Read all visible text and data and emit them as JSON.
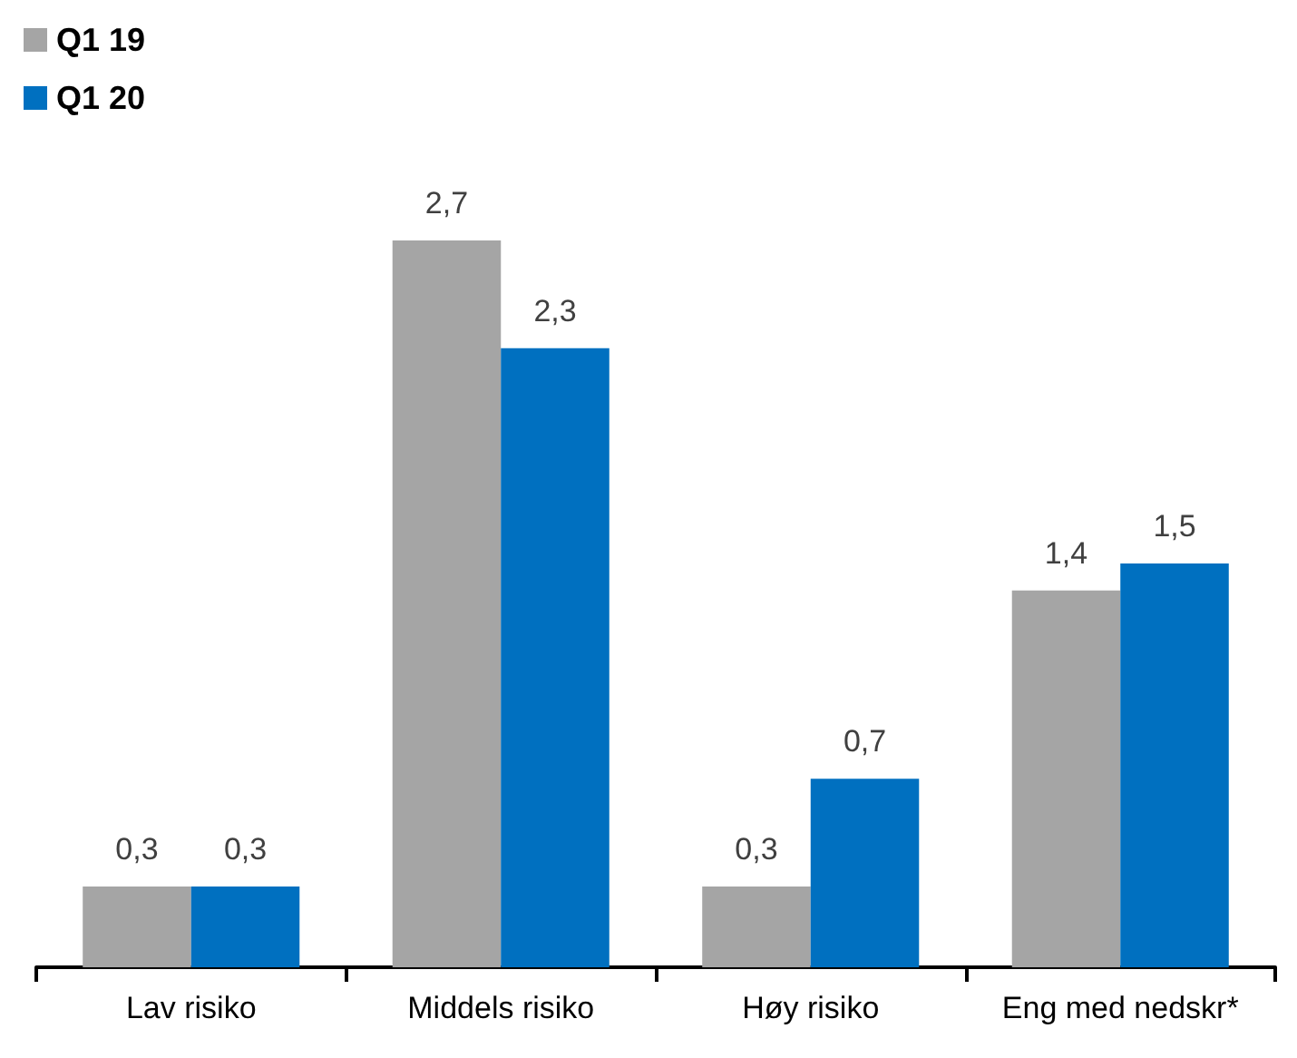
{
  "chart_data": {
    "type": "bar",
    "categories": [
      "Lav risiko",
      "Middels risiko",
      "Høy risiko",
      "Eng med nedskr*"
    ],
    "series": [
      {
        "name": "Q1 19",
        "color": "#a5a5a5",
        "values": [
          0.3,
          2.7,
          0.3,
          1.4
        ],
        "value_labels": [
          "0,3",
          "2,7",
          "0,3",
          "1,4"
        ]
      },
      {
        "name": "Q1 20",
        "color": "#0070c0",
        "values": [
          0.3,
          2.3,
          0.7,
          1.5
        ],
        "value_labels": [
          "0,3",
          "2,3",
          "0,7",
          "1,5"
        ]
      }
    ],
    "legend": "top left",
    "tick_labels": "x"
  }
}
